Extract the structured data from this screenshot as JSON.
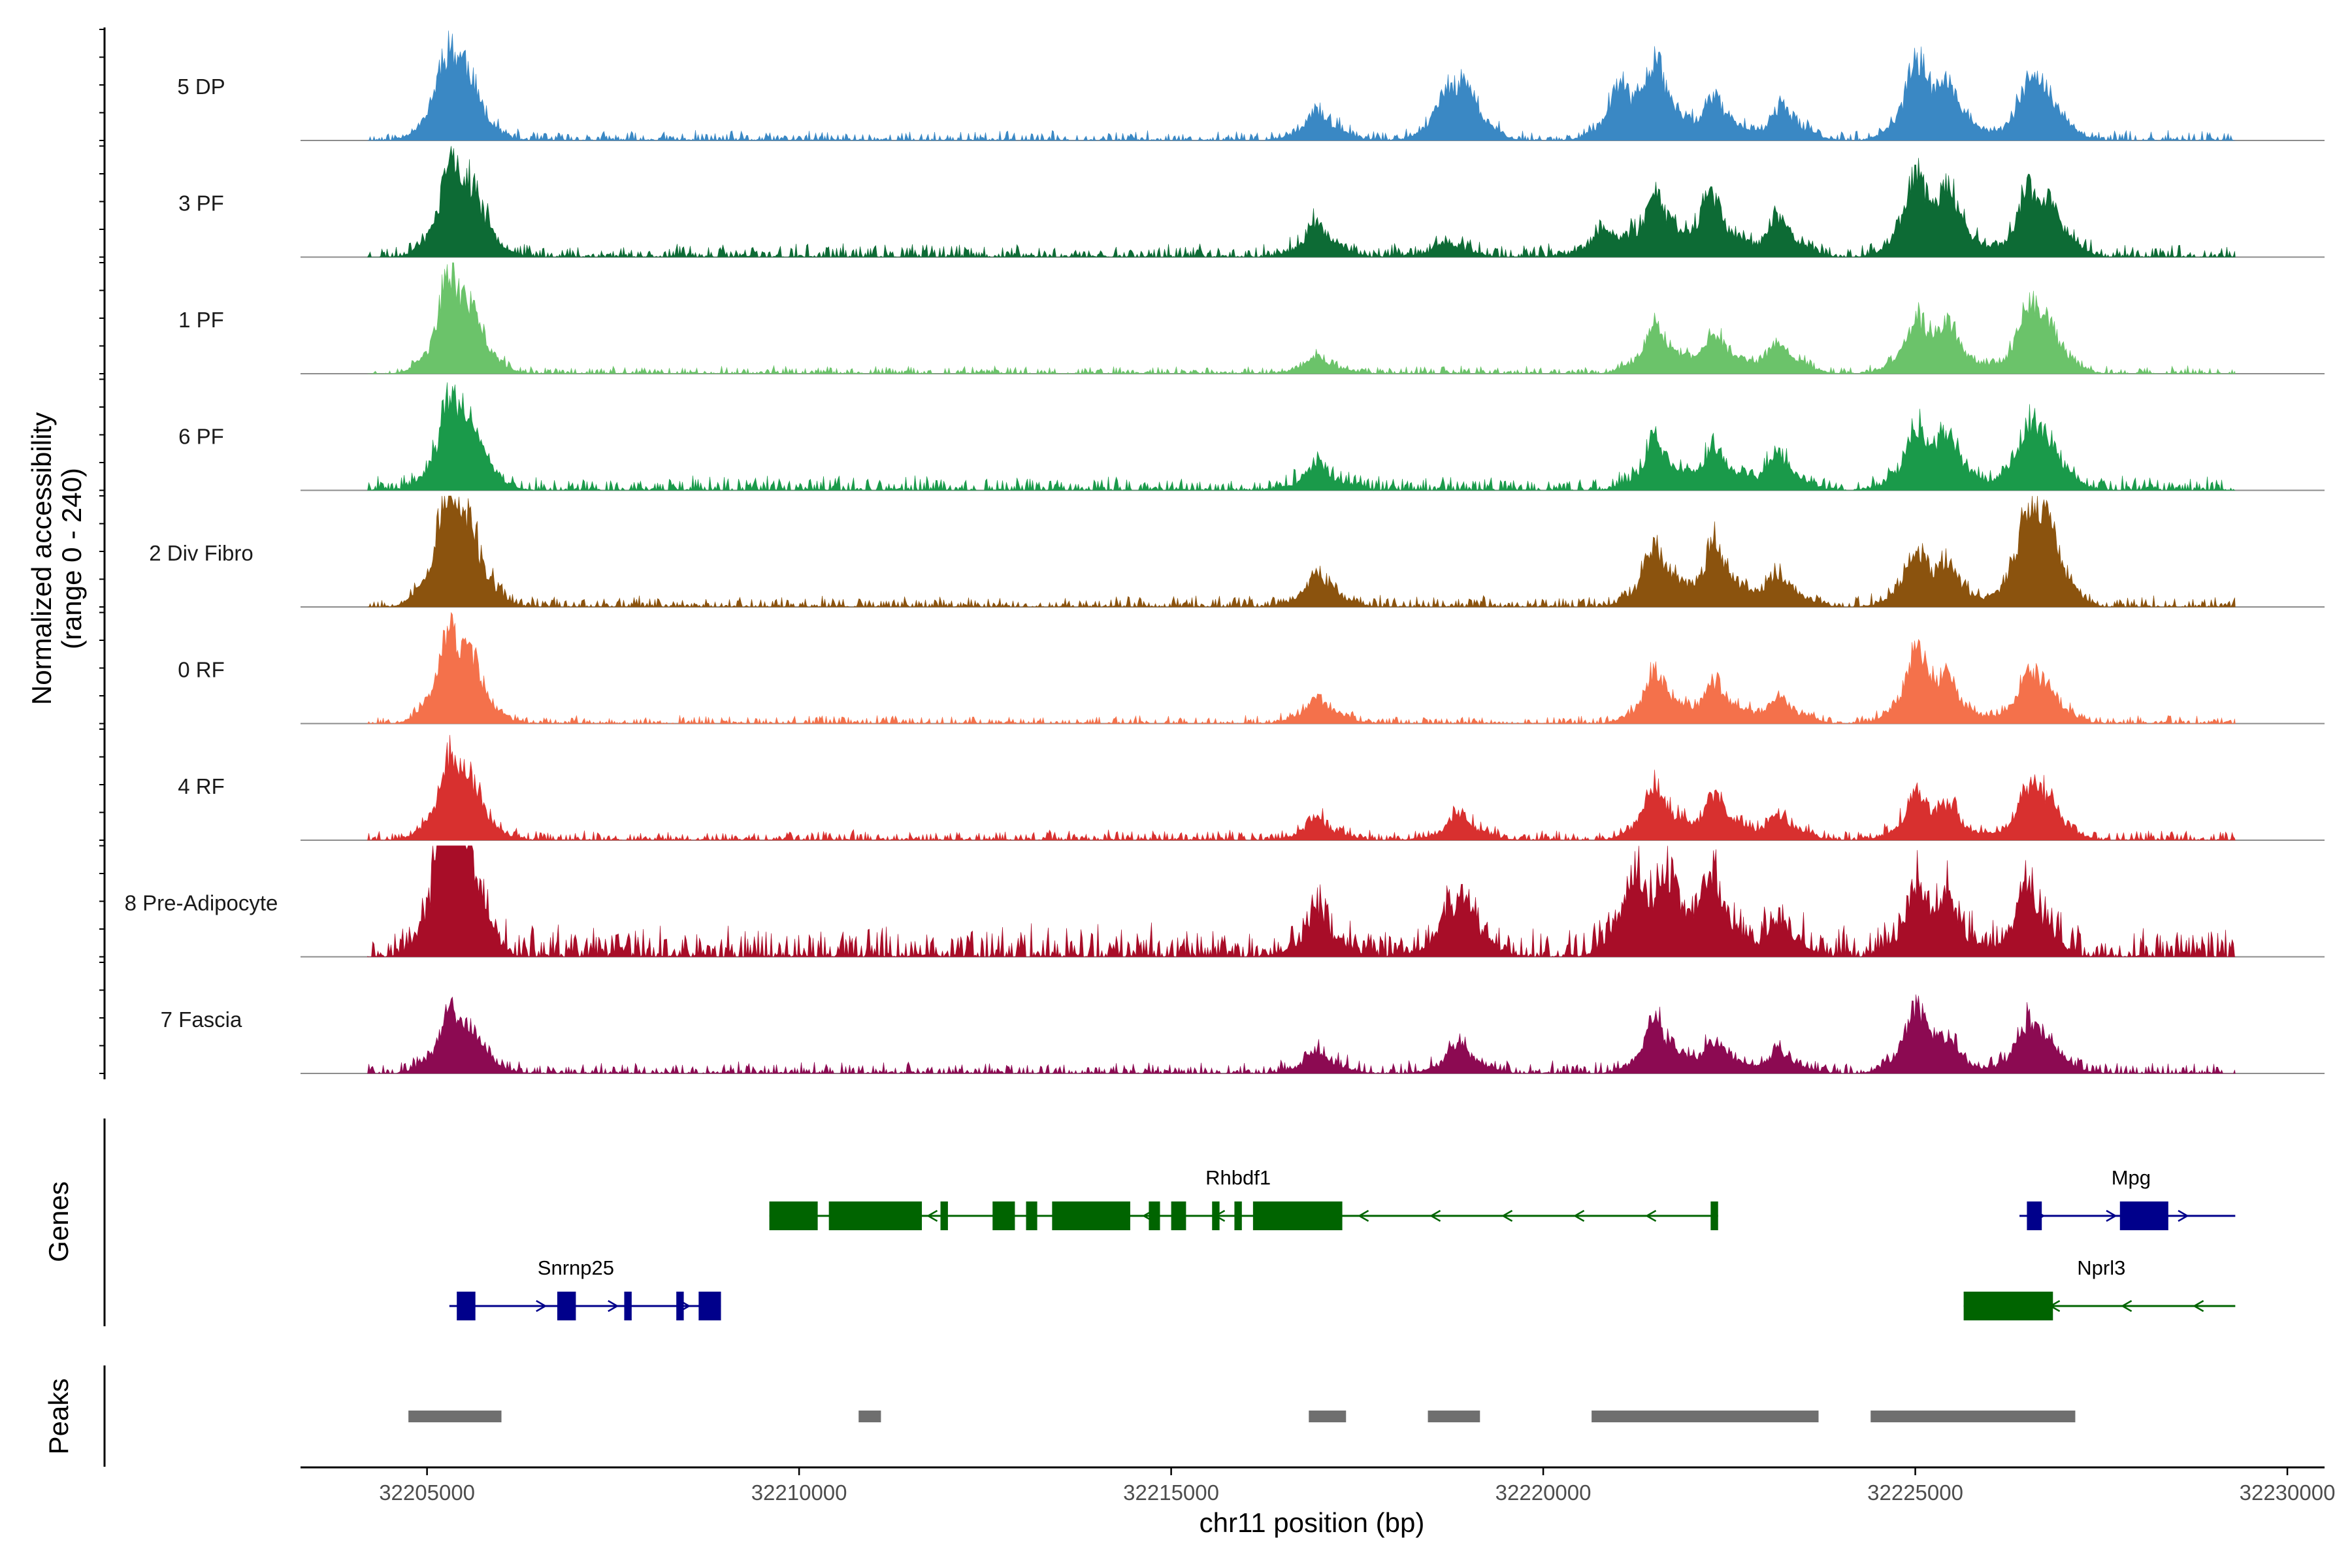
{
  "chart_data": {
    "type": "area",
    "region": {
      "chrom": "chr11",
      "start": 32203300,
      "end": 32230500
    },
    "y_axis_title_line1": "Normalized accessibility",
    "y_axis_title_line2": "(range 0 - 240)",
    "x_axis_title": "chr11 position (bp)",
    "x_ticks": [
      32205000,
      32210000,
      32215000,
      32220000,
      32225000,
      32230000
    ],
    "x_tick_labels": [
      "32205000",
      "32210000",
      "32215000",
      "32220000",
      "32225000",
      "32230000"
    ],
    "ylim": [
      0,
      240
    ],
    "signal_extent": [
      32204200,
      32229300
    ],
    "tracks": [
      {
        "name": "5 DP",
        "color": "#3a88c4",
        "peaks": [
          [
            32205250,
            0.52
          ],
          [
            32205500,
            0.32
          ],
          [
            32216950,
            0.2
          ],
          [
            32218700,
            0.3
          ],
          [
            32218950,
            0.24
          ],
          [
            32221000,
            0.32
          ],
          [
            32221500,
            0.5
          ],
          [
            32222300,
            0.28
          ],
          [
            32223200,
            0.22
          ],
          [
            32225000,
            0.5
          ],
          [
            32225450,
            0.3
          ],
          [
            32226500,
            0.32
          ],
          [
            32226750,
            0.22
          ]
        ],
        "noise": 0.05,
        "seed": 11
      },
      {
        "name": "3 PF",
        "color": "#0d6b35",
        "peaks": [
          [
            32205300,
            0.55
          ],
          [
            32205600,
            0.3
          ],
          [
            32216950,
            0.22
          ],
          [
            32218700,
            0.1
          ],
          [
            32220800,
            0.2
          ],
          [
            32221500,
            0.42
          ],
          [
            32222250,
            0.42
          ],
          [
            32223150,
            0.26
          ],
          [
            32225000,
            0.55
          ],
          [
            32225450,
            0.35
          ],
          [
            32226500,
            0.42
          ],
          [
            32226800,
            0.25
          ]
        ],
        "noise": 0.07,
        "seed": 23
      },
      {
        "name": "1 PF",
        "color": "#6bc36a",
        "peaks": [
          [
            32205300,
            0.65
          ],
          [
            32205600,
            0.22
          ],
          [
            32216950,
            0.12
          ],
          [
            32221500,
            0.35
          ],
          [
            32222300,
            0.28
          ],
          [
            32223150,
            0.22
          ],
          [
            32225000,
            0.35
          ],
          [
            32225450,
            0.28
          ],
          [
            32226500,
            0.4
          ],
          [
            32226750,
            0.22
          ]
        ],
        "noise": 0.04,
        "seed": 37
      },
      {
        "name": "6 PF",
        "color": "#1a9a4a",
        "peaks": [
          [
            32205300,
            0.6
          ],
          [
            32205600,
            0.25
          ],
          [
            32216950,
            0.18
          ],
          [
            32221500,
            0.35
          ],
          [
            32222300,
            0.3
          ],
          [
            32223150,
            0.24
          ],
          [
            32225000,
            0.38
          ],
          [
            32225450,
            0.3
          ],
          [
            32226500,
            0.38
          ],
          [
            32226750,
            0.24
          ]
        ],
        "noise": 0.07,
        "seed": 41
      },
      {
        "name": "2 Div Fibro",
        "color": "#8b530e",
        "peaks": [
          [
            32205250,
            0.7
          ],
          [
            32205550,
            0.35
          ],
          [
            32216950,
            0.22
          ],
          [
            32221500,
            0.42
          ],
          [
            32222300,
            0.44
          ],
          [
            32223150,
            0.22
          ],
          [
            32225000,
            0.38
          ],
          [
            32225450,
            0.22
          ],
          [
            32226500,
            0.58
          ],
          [
            32226750,
            0.38
          ]
        ],
        "noise": 0.06,
        "seed": 53
      },
      {
        "name": "0 RF",
        "color": "#f4714b",
        "peaks": [
          [
            32205300,
            0.62
          ],
          [
            32205600,
            0.22
          ],
          [
            32216950,
            0.18
          ],
          [
            32221500,
            0.35
          ],
          [
            32222300,
            0.28
          ],
          [
            32223150,
            0.18
          ],
          [
            32225000,
            0.5
          ],
          [
            32225450,
            0.22
          ],
          [
            32226500,
            0.3
          ],
          [
            32226750,
            0.15
          ]
        ],
        "noise": 0.04,
        "seed": 67
      },
      {
        "name": "4 RF",
        "color": "#d8302f",
        "peaks": [
          [
            32205300,
            0.55
          ],
          [
            32205600,
            0.2
          ],
          [
            32216950,
            0.14
          ],
          [
            32218850,
            0.18
          ],
          [
            32221500,
            0.38
          ],
          [
            32222300,
            0.3
          ],
          [
            32223150,
            0.18
          ],
          [
            32225000,
            0.3
          ],
          [
            32225450,
            0.18
          ],
          [
            32226500,
            0.32
          ],
          [
            32226750,
            0.18
          ]
        ],
        "noise": 0.05,
        "seed": 79
      },
      {
        "name": "8 Pre-Adipocyte",
        "color": "#a80d28",
        "peaks": [
          [
            32205250,
            0.88
          ],
          [
            32205450,
            0.6
          ],
          [
            32216950,
            0.3
          ],
          [
            32218700,
            0.22
          ],
          [
            32218950,
            0.25
          ],
          [
            32221200,
            0.55
          ],
          [
            32221700,
            0.42
          ],
          [
            32222250,
            0.5
          ],
          [
            32223150,
            0.25
          ],
          [
            32225000,
            0.45
          ],
          [
            32225450,
            0.28
          ],
          [
            32226500,
            0.5
          ]
        ],
        "noise": 0.16,
        "seed": 97
      },
      {
        "name": "7 Fascia",
        "color": "#8c0a52",
        "peaks": [
          [
            32205300,
            0.4
          ],
          [
            32205600,
            0.15
          ],
          [
            32216950,
            0.15
          ],
          [
            32218850,
            0.2
          ],
          [
            32221500,
            0.36
          ],
          [
            32222300,
            0.22
          ],
          [
            32223150,
            0.15
          ],
          [
            32225000,
            0.45
          ],
          [
            32225450,
            0.15
          ],
          [
            32226500,
            0.3
          ],
          [
            32226750,
            0.15
          ]
        ],
        "noise": 0.06,
        "seed": 101
      }
    ],
    "genes_panel_label": "Genes",
    "genes": [
      {
        "name": "Rhbdf1",
        "strand": "-",
        "color": "#006400",
        "start": 32209600,
        "end": 32222350,
        "exons": [
          [
            32209600,
            32210250
          ],
          [
            32210400,
            32211650
          ],
          [
            32211900,
            32212000
          ],
          [
            32212600,
            32212900
          ],
          [
            32213050,
            32213200
          ],
          [
            32213400,
            32214450
          ],
          [
            32214700,
            32214850
          ],
          [
            32215000,
            32215200
          ],
          [
            32215550,
            32215650
          ],
          [
            32215850,
            32215950
          ],
          [
            32216100,
            32217300
          ],
          [
            32222250,
            32222350
          ]
        ],
        "label_pos": 32215900,
        "row": 0
      },
      {
        "name": "Mpg",
        "strand": "+",
        "color": "#00008b",
        "start": 32226400,
        "end": 32229300,
        "exons": [
          [
            32226500,
            32226700
          ],
          [
            32227750,
            32228400
          ]
        ],
        "label_pos": 32227900,
        "row": 0
      },
      {
        "name": "Snrnp25",
        "strand": "+",
        "color": "#00008b",
        "start": 32205300,
        "end": 32208950,
        "exons": [
          [
            32205400,
            32205650
          ],
          [
            32206750,
            32207000
          ],
          [
            32207650,
            32207750
          ],
          [
            32208350,
            32208450
          ],
          [
            32208650,
            32208950
          ]
        ],
        "label_pos": 32207000,
        "row": 1
      },
      {
        "name": "Nprl3",
        "strand": "-",
        "color": "#006400",
        "start": 32225650,
        "end": 32229300,
        "exons": [
          [
            32225650,
            32226850
          ]
        ],
        "label_pos": 32227500,
        "row": 1
      }
    ],
    "peaks_panel_label": "Peaks",
    "peak_regions": [
      [
        32204750,
        32206000
      ],
      [
        32210800,
        32211100
      ],
      [
        32216850,
        32217350
      ],
      [
        32218450,
        32219150
      ],
      [
        32220650,
        32223700
      ],
      [
        32224400,
        32227150
      ]
    ]
  },
  "colors": {
    "peak_bar": "#6f6f6f",
    "baseline": "#8c8c8c",
    "axis": "#000000",
    "tick_text": "#4d4d4d"
  }
}
